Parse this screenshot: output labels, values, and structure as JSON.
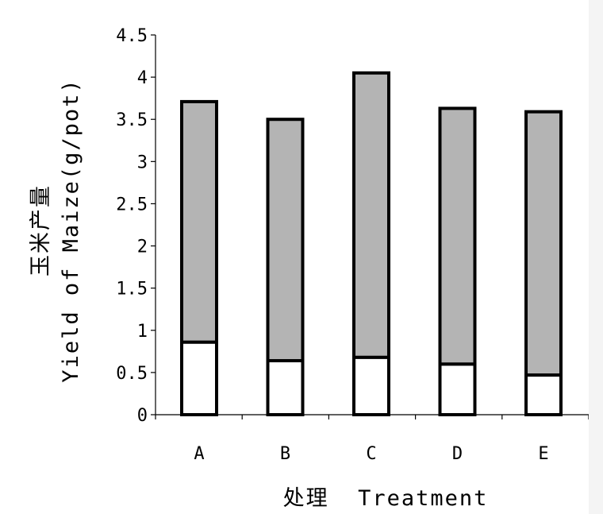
{
  "chart_data": {
    "type": "bar",
    "stacked": true,
    "categories": [
      "A",
      "B",
      "C",
      "D",
      "E"
    ],
    "series": [
      {
        "values": [
          0.86,
          0.64,
          0.68,
          0.6,
          0.47
        ],
        "color": "#ffffff"
      },
      {
        "values": [
          2.85,
          2.86,
          3.37,
          3.03,
          3.12
        ],
        "color": "#b4b4b4"
      }
    ],
    "ylim": [
      0,
      4.5
    ],
    "yticks": [
      "0",
      "0.5",
      "1",
      "1.5",
      "2",
      "2.5",
      "3",
      "3.5",
      "4",
      "4.5"
    ],
    "ylabel_cn": "玉米产量",
    "ylabel_en": "Yield of Maize(g/pot)",
    "xlabel": "处理  Treatment",
    "grid": false,
    "legend": "none"
  }
}
